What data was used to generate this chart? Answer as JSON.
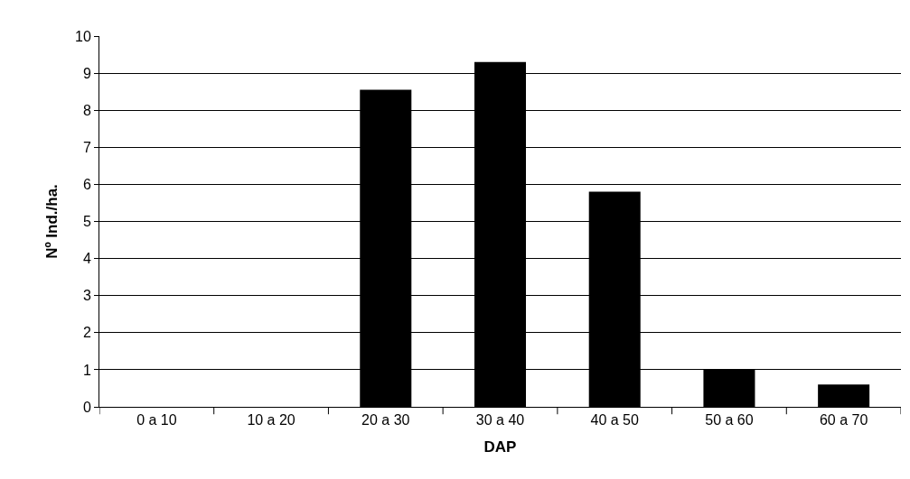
{
  "chart_data": {
    "type": "bar",
    "xlabel": "DAP",
    "ylabel": "Nº Ind./ha.",
    "categories": [
      "0 a 10",
      "10 a 20",
      "20 a 30",
      "30 a 40",
      "40 a 50",
      "50 a 60",
      "60 a 70"
    ],
    "values": [
      0,
      0,
      8.55,
      9.3,
      5.8,
      1.0,
      0.6
    ],
    "color": "#000000",
    "ylim": [
      0,
      10
    ],
    "yticks": [
      0,
      1,
      2,
      3,
      4,
      5,
      6,
      7,
      8,
      9,
      10
    ],
    "grid": "y"
  }
}
